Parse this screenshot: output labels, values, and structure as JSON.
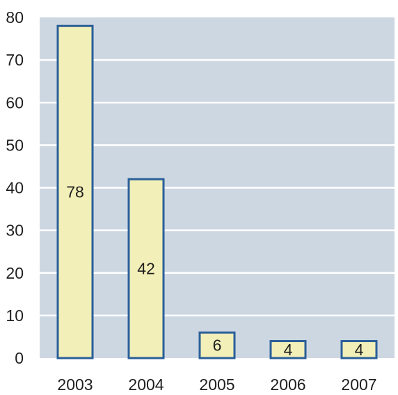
{
  "chart_data": {
    "type": "bar",
    "title": "",
    "xlabel": "",
    "ylabel": "",
    "categories": [
      "2003",
      "2004",
      "2005",
      "2006",
      "2007"
    ],
    "values": [
      78,
      42,
      6,
      4,
      4
    ],
    "data_labels": [
      "78",
      "42",
      "6",
      "4",
      "4"
    ],
    "ylim": [
      0,
      80
    ],
    "yticks": [
      0,
      10,
      20,
      30,
      40,
      50,
      60,
      70,
      80
    ],
    "ytick_labels": [
      "0",
      "10",
      "20",
      "30",
      "40",
      "50",
      "60",
      "70",
      "80"
    ],
    "grid": true,
    "colors": {
      "plot_background": "#cdd7e2",
      "gridline": "#ffffff",
      "bar_fill": "#f2efb8",
      "bar_stroke": "#2a5f99",
      "text": "#1f1f1f"
    }
  }
}
